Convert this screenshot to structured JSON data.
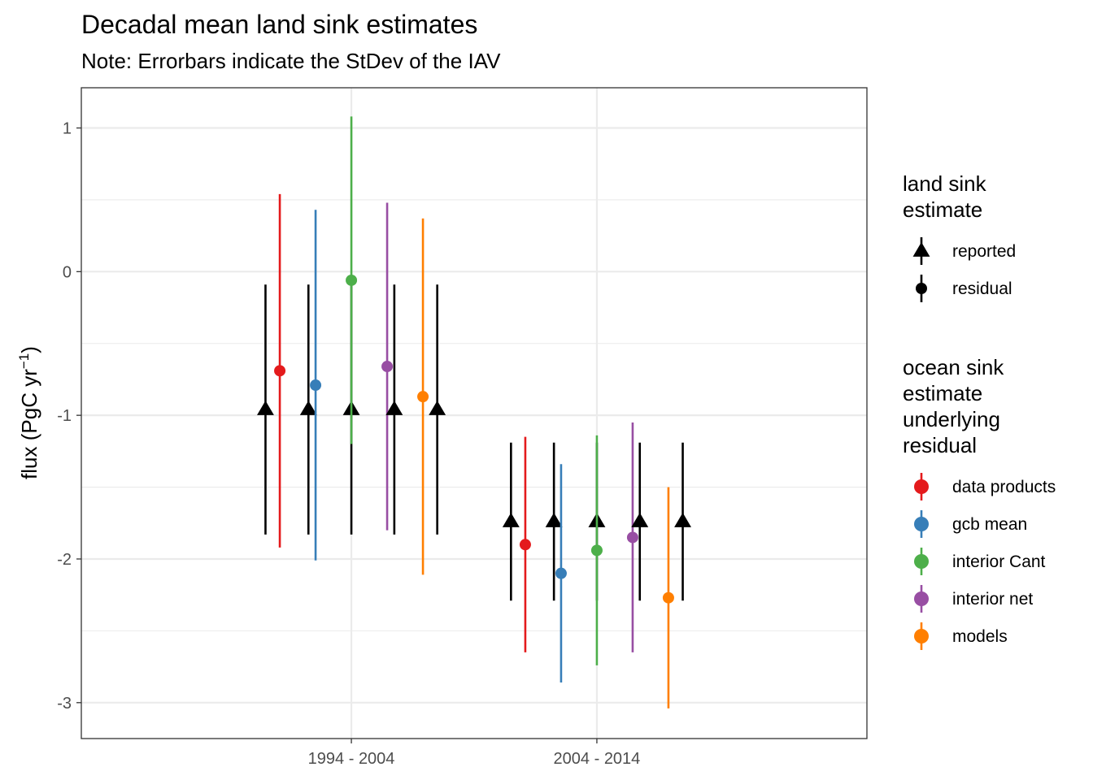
{
  "chart_data": {
    "type": "scatter",
    "title": "Decadal mean land sink estimates",
    "subtitle": "Note: Errorbars indicate the StDev of the IAV",
    "xlabel": "",
    "ylabel": "flux (PgC yr",
    "ylabel_superscript": "−1",
    "ylabel_close": ")",
    "categories": [
      "1994 - 2004",
      "2004 - 2014"
    ],
    "ylim": [
      -3.25,
      1.28
    ],
    "yticks": [
      1,
      0,
      -1,
      -2,
      -3
    ],
    "ytick_labels": [
      "1",
      "0",
      "-1",
      "-2",
      "-3"
    ],
    "grid": true,
    "legend_position": "right",
    "legend_shape": {
      "title_lines": [
        "land sink",
        "estimate"
      ],
      "items": [
        {
          "label": "reported",
          "shape": "triangle"
        },
        {
          "label": "residual",
          "shape": "circle"
        }
      ]
    },
    "legend_color": {
      "title_lines": [
        "ocean sink",
        "estimate",
        "underlying",
        "residual"
      ],
      "items": [
        {
          "label": "data products",
          "color": "#E41A1C"
        },
        {
          "label": "gcb mean",
          "color": "#377EB8"
        },
        {
          "label": "interior Cant",
          "color": "#4DAF4A"
        },
        {
          "label": "interior net",
          "color": "#984EA3"
        },
        {
          "label": "models",
          "color": "#FF7F00"
        }
      ]
    },
    "series": [
      {
        "estimate": "reported",
        "shape": "triangle",
        "color": "#000000",
        "category": "1994 - 2004",
        "offset": -0.24,
        "mean": -0.96,
        "sd": 0.87
      },
      {
        "estimate": "residual",
        "underlying": "data products",
        "color": "#E41A1C",
        "category": "1994 - 2004",
        "offset": -0.2,
        "mean": -0.69,
        "sd": 1.23
      },
      {
        "estimate": "reported",
        "shape": "triangle",
        "color": "#000000",
        "category": "1994 - 2004",
        "offset": -0.12,
        "mean": -0.96,
        "sd": 0.87
      },
      {
        "estimate": "residual",
        "underlying": "gcb mean",
        "color": "#377EB8",
        "category": "1994 - 2004",
        "offset": -0.1,
        "mean": -0.79,
        "sd": 1.22
      },
      {
        "estimate": "reported",
        "shape": "triangle",
        "color": "#000000",
        "category": "1994 - 2004",
        "offset": 0.0,
        "mean": -0.96,
        "sd": 0.87
      },
      {
        "estimate": "residual",
        "underlying": "interior Cant",
        "color": "#4DAF4A",
        "category": "1994 - 2004",
        "offset": 0.0,
        "mean": -0.06,
        "sd": 1.14
      },
      {
        "estimate": "residual",
        "underlying": "interior net",
        "color": "#984EA3",
        "category": "1994 - 2004",
        "offset": 0.1,
        "mean": -0.66,
        "sd": 1.14
      },
      {
        "estimate": "reported",
        "shape": "triangle",
        "color": "#000000",
        "category": "1994 - 2004",
        "offset": 0.12,
        "mean": -0.96,
        "sd": 0.87
      },
      {
        "estimate": "residual",
        "underlying": "models",
        "color": "#FF7F00",
        "category": "1994 - 2004",
        "offset": 0.2,
        "mean": -0.87,
        "sd": 1.24
      },
      {
        "estimate": "reported",
        "shape": "triangle",
        "color": "#000000",
        "category": "1994 - 2004",
        "offset": 0.24,
        "mean": -0.96,
        "sd": 0.87
      },
      {
        "estimate": "reported",
        "shape": "triangle",
        "color": "#000000",
        "category": "2004 - 2014",
        "offset": -0.24,
        "mean": -1.74,
        "sd": 0.55
      },
      {
        "estimate": "residual",
        "underlying": "data products",
        "color": "#E41A1C",
        "category": "2004 - 2014",
        "offset": -0.2,
        "mean": -1.9,
        "sd": 0.75
      },
      {
        "estimate": "reported",
        "shape": "triangle",
        "color": "#000000",
        "category": "2004 - 2014",
        "offset": -0.12,
        "mean": -1.74,
        "sd": 0.55
      },
      {
        "estimate": "residual",
        "underlying": "gcb mean",
        "color": "#377EB8",
        "category": "2004 - 2014",
        "offset": -0.1,
        "mean": -2.1,
        "sd": 0.76
      },
      {
        "estimate": "reported",
        "shape": "triangle",
        "color": "#000000",
        "category": "2004 - 2014",
        "offset": 0.0,
        "mean": -1.74,
        "sd": 0.55
      },
      {
        "estimate": "residual",
        "underlying": "interior Cant",
        "color": "#4DAF4A",
        "category": "2004 - 2014",
        "offset": 0.0,
        "mean": -1.94,
        "sd": 0.8
      },
      {
        "estimate": "residual",
        "underlying": "interior net",
        "color": "#984EA3",
        "category": "2004 - 2014",
        "offset": 0.1,
        "mean": -1.85,
        "sd": 0.8
      },
      {
        "estimate": "reported",
        "shape": "triangle",
        "color": "#000000",
        "category": "2004 - 2014",
        "offset": 0.12,
        "mean": -1.74,
        "sd": 0.55
      },
      {
        "estimate": "residual",
        "underlying": "models",
        "color": "#FF7F00",
        "category": "2004 - 2014",
        "offset": 0.2,
        "mean": -2.27,
        "sd": 0.77
      },
      {
        "estimate": "reported",
        "shape": "triangle",
        "color": "#000000",
        "category": "2004 - 2014",
        "offset": 0.24,
        "mean": -1.74,
        "sd": 0.55
      }
    ]
  }
}
